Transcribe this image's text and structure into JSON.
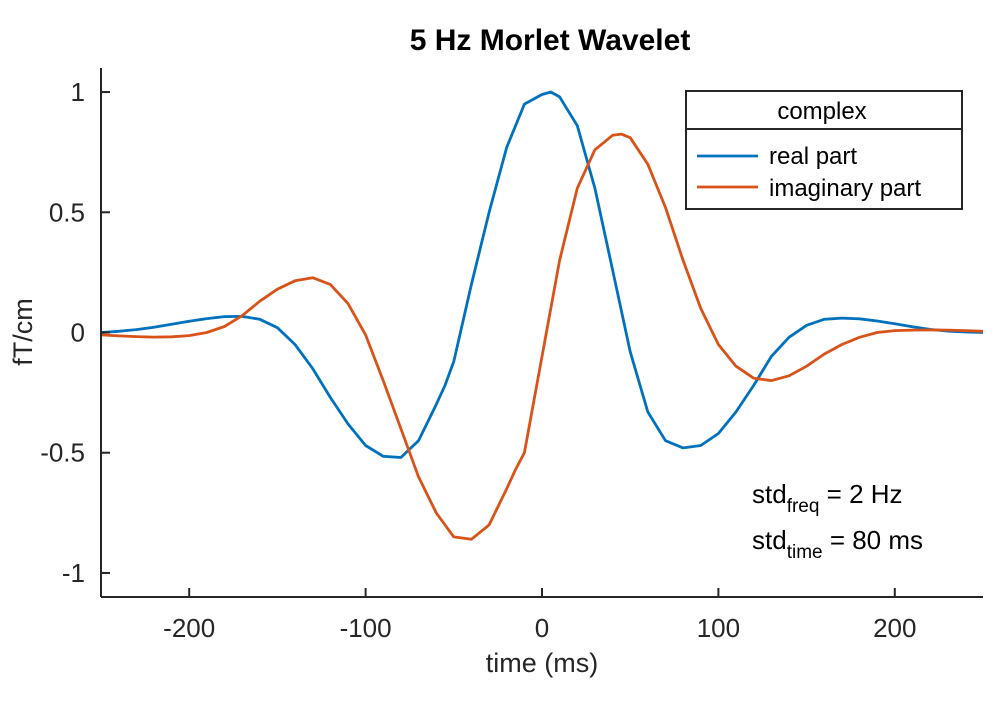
{
  "chart_data": {
    "type": "line",
    "title": "5 Hz Morlet Wavelet",
    "xlabel": "time (ms)",
    "ylabel": "fT/cm",
    "xlim": [
      -250,
      250
    ],
    "ylim": [
      -1.1,
      1.1
    ],
    "xticks": [
      -200,
      -100,
      0,
      100,
      200
    ],
    "xtick_labels": [
      "-200",
      "-100",
      "0",
      "100",
      "200"
    ],
    "yticks": [
      -1,
      -0.5,
      0,
      0.5,
      1
    ],
    "ytick_labels": [
      "-1",
      "-0.5",
      "0",
      "0.5",
      "1"
    ],
    "grid": false,
    "legend": {
      "title": "complex",
      "position": "top-right"
    },
    "series": [
      {
        "name": "real part",
        "color": "#0072BD",
        "x": [
          -250,
          -240,
          -230,
          -220,
          -210,
          -200,
          -190,
          -180,
          -170,
          -160,
          -150,
          -140,
          -130,
          -120,
          -110,
          -100,
          -90,
          -80,
          -70,
          -60,
          -55,
          -50,
          -40,
          -30,
          -20,
          -10,
          0,
          5,
          10,
          20,
          30,
          40,
          50,
          60,
          70,
          80,
          90,
          100,
          110,
          120,
          130,
          140,
          150,
          160,
          170,
          180,
          190,
          200,
          210,
          220,
          230,
          240,
          250
        ],
        "values": [
          0.0,
          0.005,
          0.012,
          0.022,
          0.034,
          0.047,
          0.058,
          0.066,
          0.067,
          0.055,
          0.02,
          -0.05,
          -0.15,
          -0.27,
          -0.38,
          -0.47,
          -0.515,
          -0.52,
          -0.45,
          -0.3,
          -0.22,
          -0.12,
          0.2,
          0.5,
          0.77,
          0.95,
          0.99,
          1.0,
          0.98,
          0.86,
          0.6,
          0.26,
          -0.08,
          -0.33,
          -0.45,
          -0.48,
          -0.47,
          -0.42,
          -0.33,
          -0.22,
          -0.1,
          -0.02,
          0.03,
          0.055,
          0.06,
          0.057,
          0.048,
          0.036,
          0.024,
          0.013,
          0.006,
          0.002,
          0.0
        ]
      },
      {
        "name": "imaginary part",
        "color": "#D95319",
        "x": [
          -250,
          -240,
          -230,
          -220,
          -210,
          -200,
          -190,
          -180,
          -170,
          -160,
          -150,
          -140,
          -130,
          -120,
          -110,
          -100,
          -90,
          -80,
          -70,
          -60,
          -50,
          -40,
          -30,
          -20,
          -15,
          -10,
          0,
          10,
          20,
          30,
          40,
          45,
          50,
          60,
          70,
          80,
          90,
          100,
          110,
          120,
          130,
          140,
          150,
          160,
          170,
          180,
          190,
          200,
          210,
          220,
          230,
          240,
          250
        ],
        "values": [
          -0.01,
          -0.014,
          -0.017,
          -0.019,
          -0.018,
          -0.013,
          0.0,
          0.025,
          0.07,
          0.13,
          0.18,
          0.215,
          0.228,
          0.2,
          0.12,
          -0.01,
          -0.2,
          -0.4,
          -0.6,
          -0.75,
          -0.85,
          -0.86,
          -0.8,
          -0.65,
          -0.57,
          -0.5,
          -0.1,
          0.3,
          0.6,
          0.76,
          0.82,
          0.825,
          0.81,
          0.7,
          0.52,
          0.3,
          0.1,
          -0.05,
          -0.14,
          -0.19,
          -0.2,
          -0.18,
          -0.14,
          -0.09,
          -0.05,
          -0.02,
          0.0,
          0.008,
          0.01,
          0.011,
          0.01,
          0.008,
          0.005
        ]
      }
    ],
    "annotations": [
      {
        "base": "std",
        "sub": "freq",
        "rest": " = 2 Hz"
      },
      {
        "base": "std",
        "sub": "time",
        "rest": " = 80 ms"
      }
    ]
  }
}
